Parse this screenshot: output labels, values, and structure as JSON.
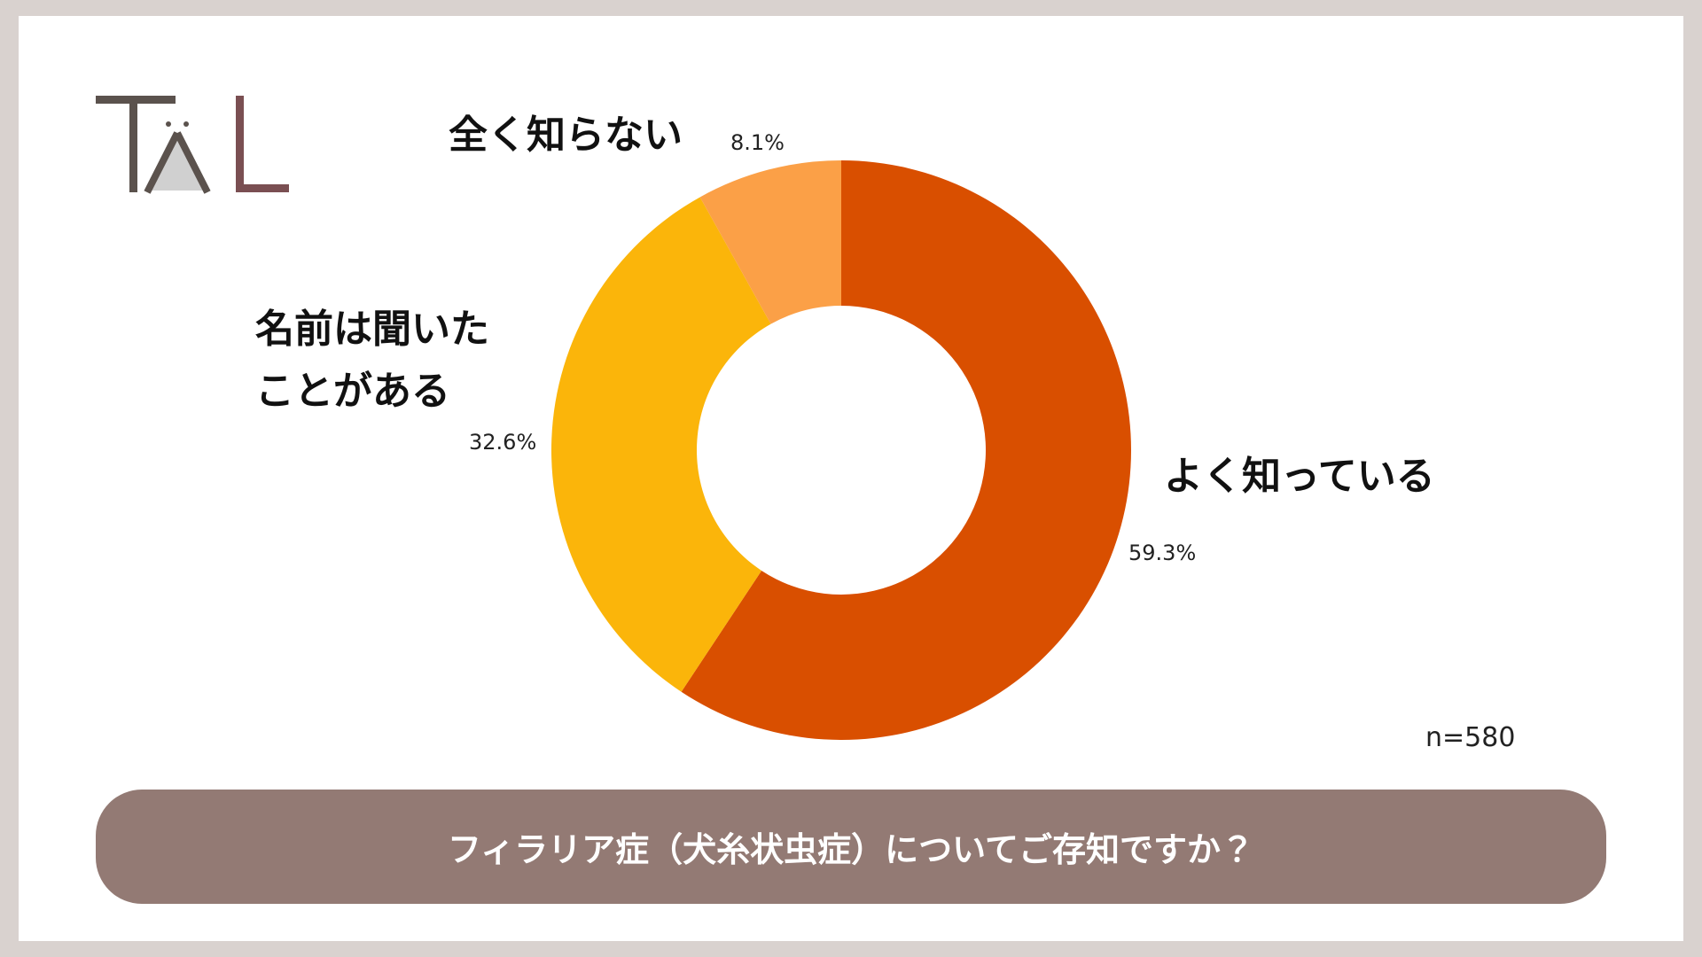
{
  "chart_data": {
    "type": "donut",
    "title": "フィラリア症（犬糸状虫症）についてご存知ですか？",
    "note": "n=580",
    "categories": [
      "よく知っている",
      "名前は聞いたことがある",
      "全く知らない"
    ],
    "values": [
      59.3,
      32.6,
      8.1
    ],
    "value_labels": [
      "59.3%",
      "32.6%",
      "8.1%"
    ],
    "colors": [
      "#d94f00",
      "#fbb50a",
      "#fba047"
    ]
  }
}
